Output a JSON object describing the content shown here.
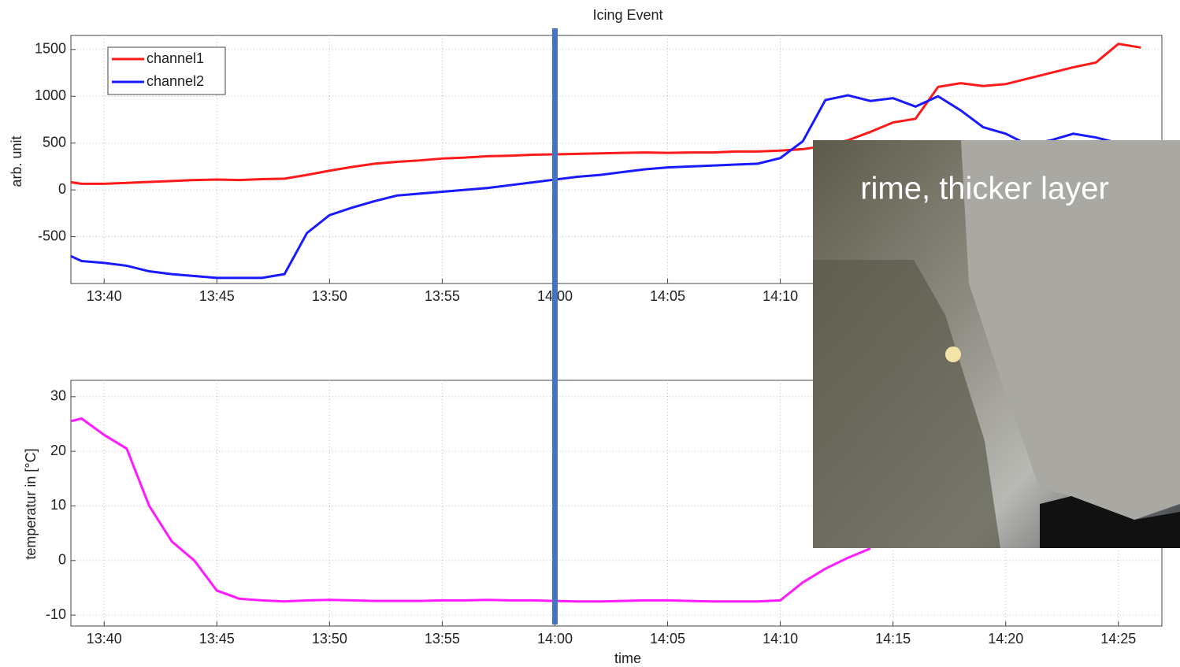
{
  "chart_data": [
    {
      "type": "line",
      "title": "Icing Event",
      "ylabel": "arb. unit",
      "x": [
        "13:38",
        "13:39",
        "13:40",
        "13:41",
        "13:42",
        "13:43",
        "13:44",
        "13:45",
        "13:46",
        "13:47",
        "13:48",
        "13:49",
        "13:50",
        "13:51",
        "13:52",
        "13:53",
        "13:54",
        "13:55",
        "13:56",
        "13:57",
        "13:58",
        "13:59",
        "14:00",
        "14:01",
        "14:02",
        "14:03",
        "14:04",
        "14:05",
        "14:06",
        "14:07",
        "14:08",
        "14:09",
        "14:10",
        "14:11",
        "14:12",
        "14:13",
        "14:14",
        "14:15",
        "14:16",
        "14:17",
        "14:18",
        "14:19",
        "14:20",
        "14:21",
        "14:22",
        "14:23",
        "14:24",
        "14:25",
        "14:26"
      ],
      "series": [
        {
          "name": "channel1",
          "color": "#ff1a1a",
          "values": [
            100,
            65,
            65,
            75,
            85,
            95,
            105,
            110,
            105,
            115,
            120,
            160,
            205,
            245,
            280,
            300,
            315,
            335,
            345,
            360,
            365,
            375,
            380,
            385,
            390,
            395,
            400,
            395,
            400,
            400,
            410,
            410,
            420,
            435,
            470,
            530,
            620,
            720,
            760,
            1100,
            1140,
            1110,
            1130,
            1190,
            1250,
            1310,
            1360,
            1560,
            1520
          ]
        },
        {
          "name": "channel2",
          "color": "#1a1aff",
          "values": [
            -650,
            -760,
            -780,
            -810,
            -870,
            -900,
            -920,
            -940,
            -940,
            -940,
            -900,
            -460,
            -270,
            -190,
            -120,
            -60,
            -40,
            -20,
            0,
            20,
            50,
            80,
            110,
            140,
            160,
            190,
            220,
            240,
            250,
            260,
            270,
            280,
            340,
            520,
            960,
            1010,
            950,
            980,
            890,
            1000,
            850,
            670,
            600,
            480,
            530,
            600,
            560,
            500,
            450
          ]
        }
      ],
      "xlim": [
        "13:38",
        "14:27"
      ],
      "ylim": [
        -1000,
        1650
      ],
      "xticks": [
        "13:40",
        "13:45",
        "13:50",
        "13:55",
        "14:00",
        "14:05",
        "14:10"
      ],
      "yticks": [
        -500,
        0,
        500,
        1000,
        1500
      ],
      "grid": true,
      "legend": "upper left",
      "marker_x": "14:00",
      "marker_color": "#4472c4"
    },
    {
      "type": "line",
      "ylabel": "temperatur in [°C]",
      "xlabel": "time",
      "x": [
        "13:38",
        "13:39",
        "13:40",
        "13:41",
        "13:42",
        "13:43",
        "13:44",
        "13:45",
        "13:46",
        "13:47",
        "13:48",
        "13:49",
        "13:50",
        "13:51",
        "13:52",
        "13:53",
        "13:54",
        "13:55",
        "13:56",
        "13:57",
        "13:58",
        "13:59",
        "14:00",
        "14:01",
        "14:02",
        "14:03",
        "14:04",
        "14:05",
        "14:06",
        "14:07",
        "14:08",
        "14:09",
        "14:10",
        "14:11",
        "14:12",
        "14:13",
        "14:14"
      ],
      "series": [
        {
          "color": "#ff1aff",
          "values": [
            25,
            26,
            23,
            20.5,
            10,
            3.5,
            0,
            -5.5,
            -7,
            -7.3,
            -7.5,
            -7.3,
            -7.2,
            -7.3,
            -7.4,
            -7.4,
            -7.4,
            -7.3,
            -7.3,
            -7.2,
            -7.3,
            -7.3,
            -7.4,
            -7.5,
            -7.5,
            -7.4,
            -7.3,
            -7.3,
            -7.4,
            -7.5,
            -7.5,
            -7.5,
            -7.3,
            -4,
            -1.5,
            0.5,
            2.2
          ]
        }
      ],
      "xlim": [
        "13:38",
        "14:27"
      ],
      "ylim": [
        -12,
        33
      ],
      "xticks": [
        "13:40",
        "13:45",
        "13:50",
        "13:55",
        "14:00",
        "14:05",
        "14:10",
        "14:15",
        "14:20",
        "14:25"
      ],
      "yticks": [
        -10,
        0,
        10,
        20,
        30
      ],
      "grid": true
    }
  ],
  "photo": {
    "caption": "rime, thicker layer"
  }
}
